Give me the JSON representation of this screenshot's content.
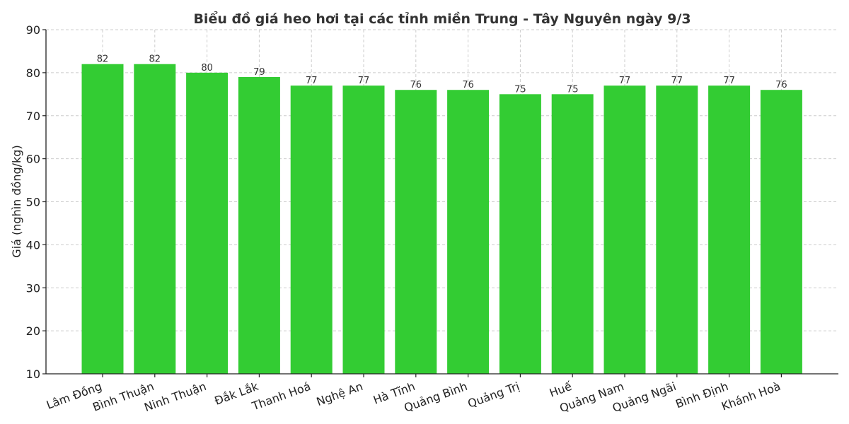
{
  "chart_data": {
    "type": "bar",
    "title": "Biểu đồ giá heo hơi tại các tỉnh miền Trung - Tây Nguyên ngày 9/3",
    "xlabel": "",
    "ylabel": "Giá (nghìn đồng/kg)",
    "ylim": [
      10,
      90
    ],
    "yticks": [
      10,
      20,
      30,
      40,
      50,
      60,
      70,
      80,
      90
    ],
    "grid": true,
    "bar_color": "#33cc33",
    "categories": [
      "Lâm Đồng",
      "Bình Thuận",
      "Ninh Thuận",
      "Đắk Lắk",
      "Thanh Hoá",
      "Nghệ An",
      "Hà Tĩnh",
      "Quảng Bình",
      "Quảng Trị",
      "Huế",
      "Quảng Nam",
      "Quảng Ngãi",
      "Bình Định",
      "Khánh Hoà"
    ],
    "values": [
      82,
      82,
      80,
      79,
      77,
      77,
      76,
      76,
      75,
      75,
      77,
      77,
      77,
      76
    ]
  }
}
